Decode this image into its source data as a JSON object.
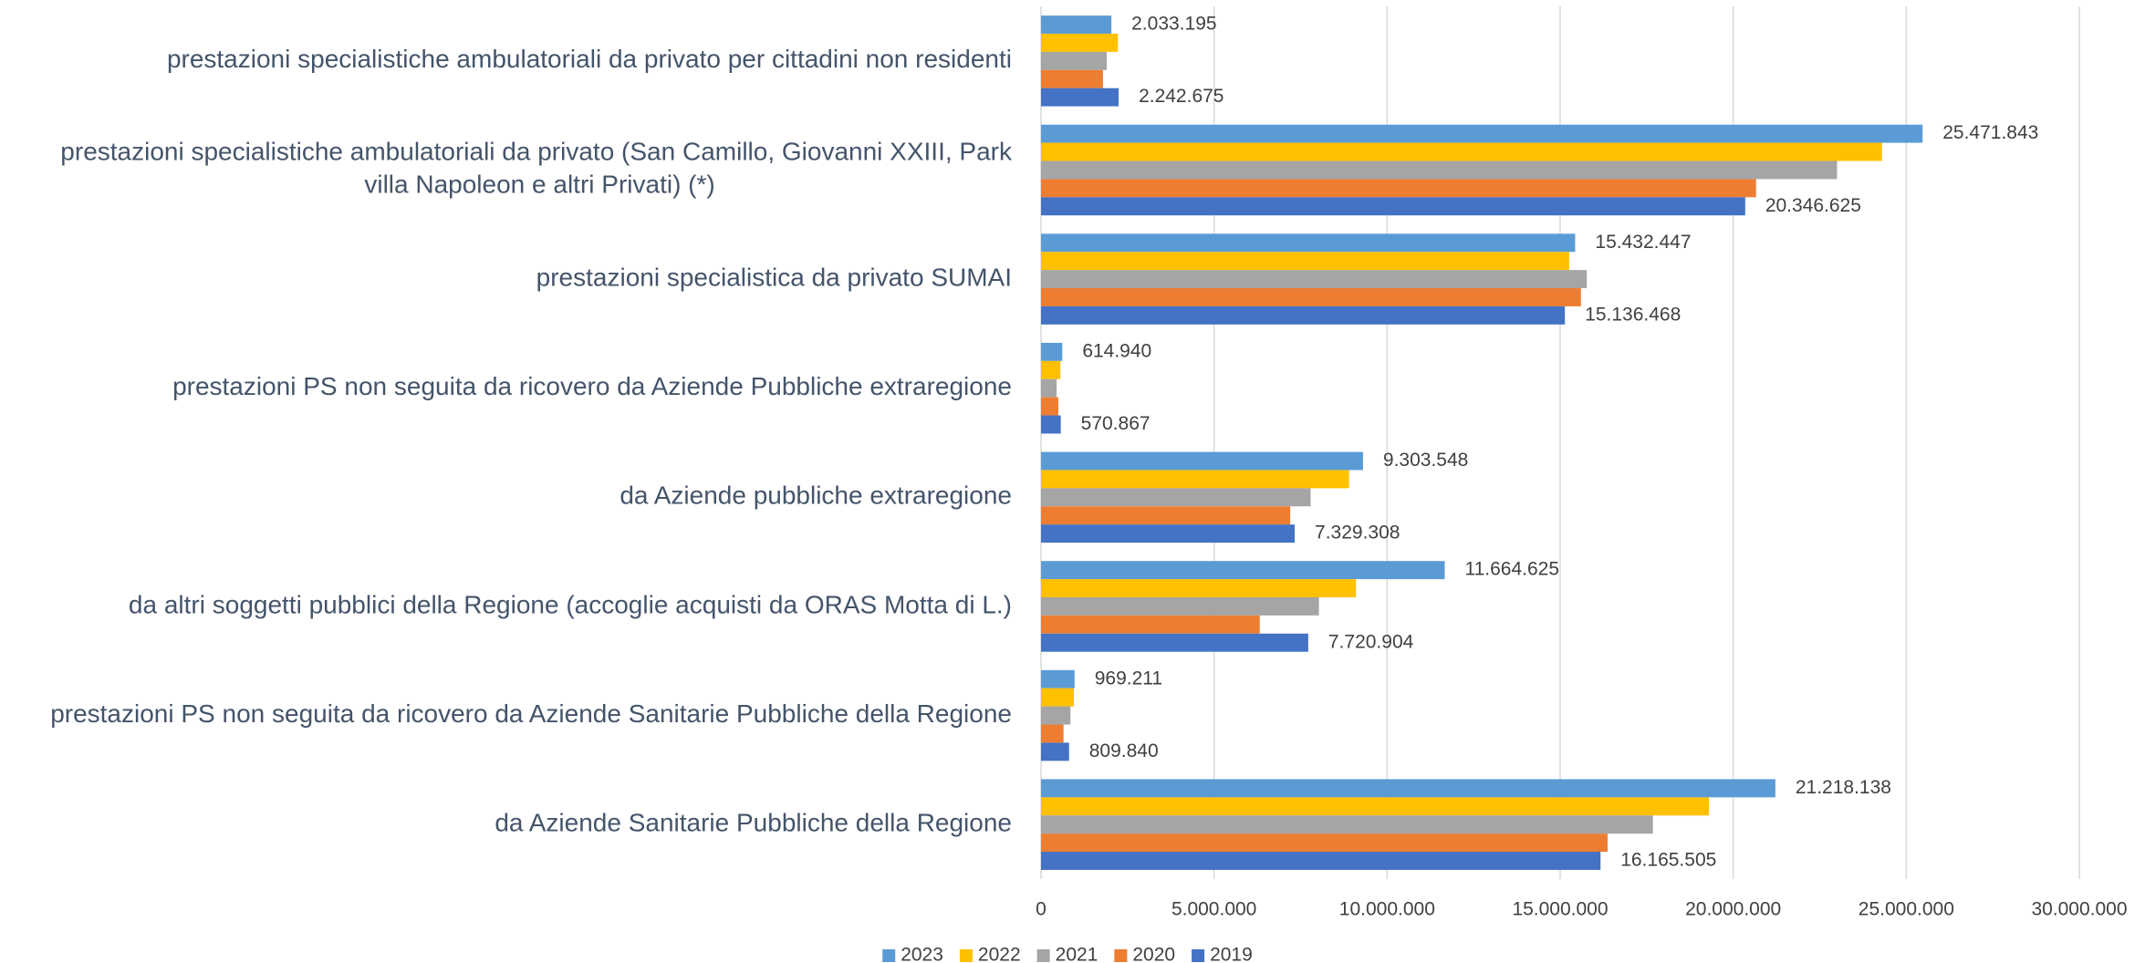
{
  "chart_data": {
    "type": "bar",
    "orientation": "horizontal",
    "categories": [
      "prestazioni specialistiche ambulatoriali da privato per cittadini non residenti",
      "prestazioni specialistiche ambulatoriali da privato (San Camillo, Giovanni XXIII, Park villa Napoleon e altri Privati) (*)",
      "prestazioni specialistica da privato SUMAI",
      "prestazioni PS non seguita da ricovero da  Aziende Pubbliche extraregione",
      "da Aziende pubbliche extraregione",
      "da altri soggetti pubblici della Regione (accoglie acquisti da ORAS Motta di L.)",
      "prestazioni PS non seguita da ricovero da  Aziende Sanitarie Pubbliche della Regione",
      "da Aziende Sanitarie Pubbliche della Regione"
    ],
    "series": [
      {
        "name": "2023",
        "color": "#5b9bd5",
        "values": [
          2033195,
          25471843,
          15432447,
          614940,
          9303548,
          11664625,
          969211,
          21218138
        ],
        "value_labels": [
          "2.033.195",
          "25.471.843",
          "15.432.447",
          "614.940",
          "9.303.548",
          "11.664.625",
          "969.211",
          "21.218.138"
        ]
      },
      {
        "name": "2022",
        "color": "#ffc000",
        "values": [
          2220000,
          24300000,
          15260000,
          560000,
          8900000,
          9100000,
          950000,
          19300000
        ]
      },
      {
        "name": "2021",
        "color": "#a5a5a5",
        "values": [
          1900000,
          23000000,
          15770000,
          450000,
          7790000,
          8030000,
          850000,
          17680000
        ]
      },
      {
        "name": "2020",
        "color": "#ed7d31",
        "values": [
          1790000,
          20660000,
          15600000,
          500000,
          7200000,
          6320000,
          650000,
          16370000
        ]
      },
      {
        "name": "2019",
        "color": "#4472c4",
        "values": [
          2242675,
          20346625,
          15136468,
          570867,
          7329308,
          7720904,
          809840,
          16165505
        ],
        "value_labels": [
          "2.242.675",
          "20.346.625",
          "15.136.468",
          "570.867",
          "7.329.308",
          "7.720.904",
          "809.840",
          "16.165.505"
        ]
      }
    ],
    "xlim": [
      0,
      30000000
    ],
    "xticks": [
      0,
      {
        "value": 5000000,
        "label": "5.000.000"
      },
      {
        "value": 10000000,
        "label": "10.000.000"
      },
      {
        "value": 15000000,
        "label": "15.000.000"
      },
      {
        "value": 20000000,
        "label": "20.000.000"
      },
      {
        "value": 25000000,
        "label": "25.000.000"
      },
      {
        "value": 30000000,
        "label": "30.000.000"
      }
    ],
    "grid": true,
    "legend": "bottom"
  }
}
